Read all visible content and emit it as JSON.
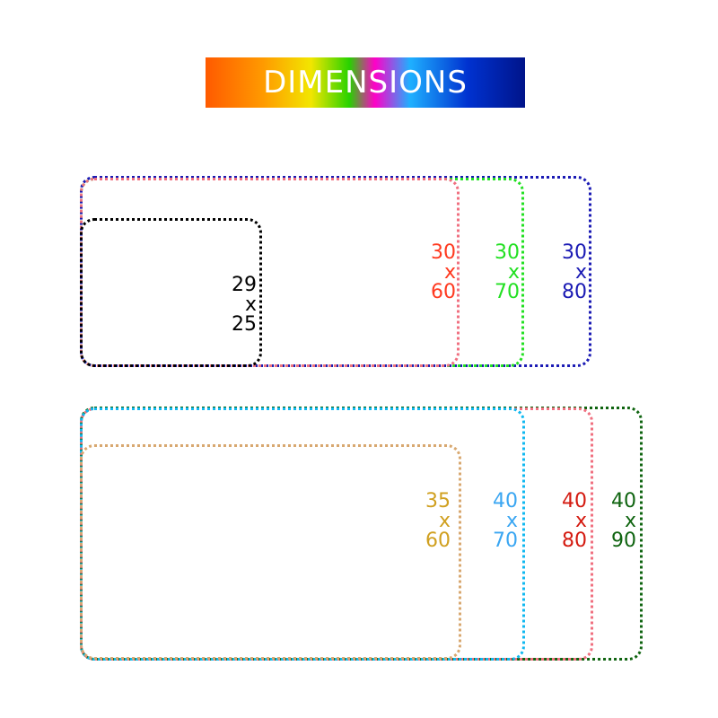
{
  "title": "DIMENSIONS",
  "groups": [
    {
      "boxes": [
        {
          "width": "30",
          "length": "80",
          "color": "#1a1ab4"
        },
        {
          "width": "30",
          "length": "70",
          "color": "#22e022"
        },
        {
          "width": "30",
          "length": "60",
          "color": "#ff3a20",
          "border_color": "#f07080"
        },
        {
          "width": "29",
          "length": "25",
          "color": "#000000"
        }
      ]
    },
    {
      "boxes": [
        {
          "width": "40",
          "length": "90",
          "color": "#0f6410"
        },
        {
          "width": "40",
          "length": "80",
          "color": "#d41a10",
          "border_color": "#f07080"
        },
        {
          "width": "40",
          "length": "70",
          "color": "#3aa6f2",
          "border_color": "#10b8f0"
        },
        {
          "width": "35",
          "length": "60",
          "color": "#d0a020",
          "border_color": "#d8a870"
        }
      ]
    }
  ],
  "separator": "x"
}
